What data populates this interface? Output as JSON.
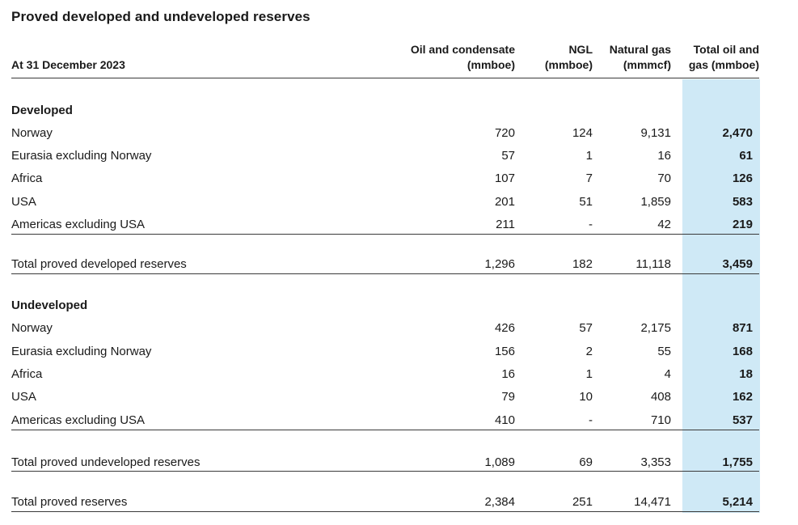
{
  "title": "Proved developed and undeveloped reserves",
  "header": {
    "date_label": "At 31 December 2023",
    "columns": [
      {
        "line1": "Oil and condensate",
        "line2": "(mmboe)"
      },
      {
        "line1": "NGL",
        "line2": "(mmboe)"
      },
      {
        "line1": "Natural gas",
        "line2": "(mmmcf)"
      },
      {
        "line1": "Total oil and",
        "line2": "gas (mmboe)"
      }
    ]
  },
  "developed": {
    "heading": "Developed",
    "rows": [
      {
        "label": "Norway",
        "oil": "720",
        "ngl": "124",
        "gas": "9,131",
        "total": "2,470"
      },
      {
        "label": "Eurasia excluding Norway",
        "oil": "57",
        "ngl": "1",
        "gas": "16",
        "total": "61"
      },
      {
        "label": "Africa",
        "oil": "107",
        "ngl": "7",
        "gas": "70",
        "total": "126"
      },
      {
        "label": "USA",
        "oil": "201",
        "ngl": "51",
        "gas": "1,859",
        "total": "583"
      },
      {
        "label": "Americas excluding USA",
        "oil": "211",
        "ngl": "-",
        "gas": "42",
        "total": "219"
      }
    ],
    "total": {
      "label": "Total proved developed reserves",
      "oil": "1,296",
      "ngl": "182",
      "gas": "11,118",
      "total": "3,459"
    }
  },
  "undeveloped": {
    "heading": "Undeveloped",
    "rows": [
      {
        "label": "Norway",
        "oil": "426",
        "ngl": "57",
        "gas": "2,175",
        "total": "871"
      },
      {
        "label": "Eurasia excluding Norway",
        "oil": "156",
        "ngl": "2",
        "gas": "55",
        "total": "168"
      },
      {
        "label": "Africa",
        "oil": "16",
        "ngl": "1",
        "gas": "4",
        "total": "18"
      },
      {
        "label": "USA",
        "oil": "79",
        "ngl": "10",
        "gas": "408",
        "total": "162"
      },
      {
        "label": "Americas excluding USA",
        "oil": "410",
        "ngl": "-",
        "gas": "710",
        "total": "537"
      }
    ],
    "total": {
      "label": "Total proved undeveloped reserves",
      "oil": "1,089",
      "ngl": "69",
      "gas": "3,353",
      "total": "1,755"
    }
  },
  "grand_total": {
    "label": "Total proved reserves",
    "oil": "2,384",
    "ngl": "251",
    "gas": "14,471",
    "total": "5,214"
  },
  "colors": {
    "highlight_column": "#cfe9f6",
    "rule": "#3a3a3a"
  }
}
